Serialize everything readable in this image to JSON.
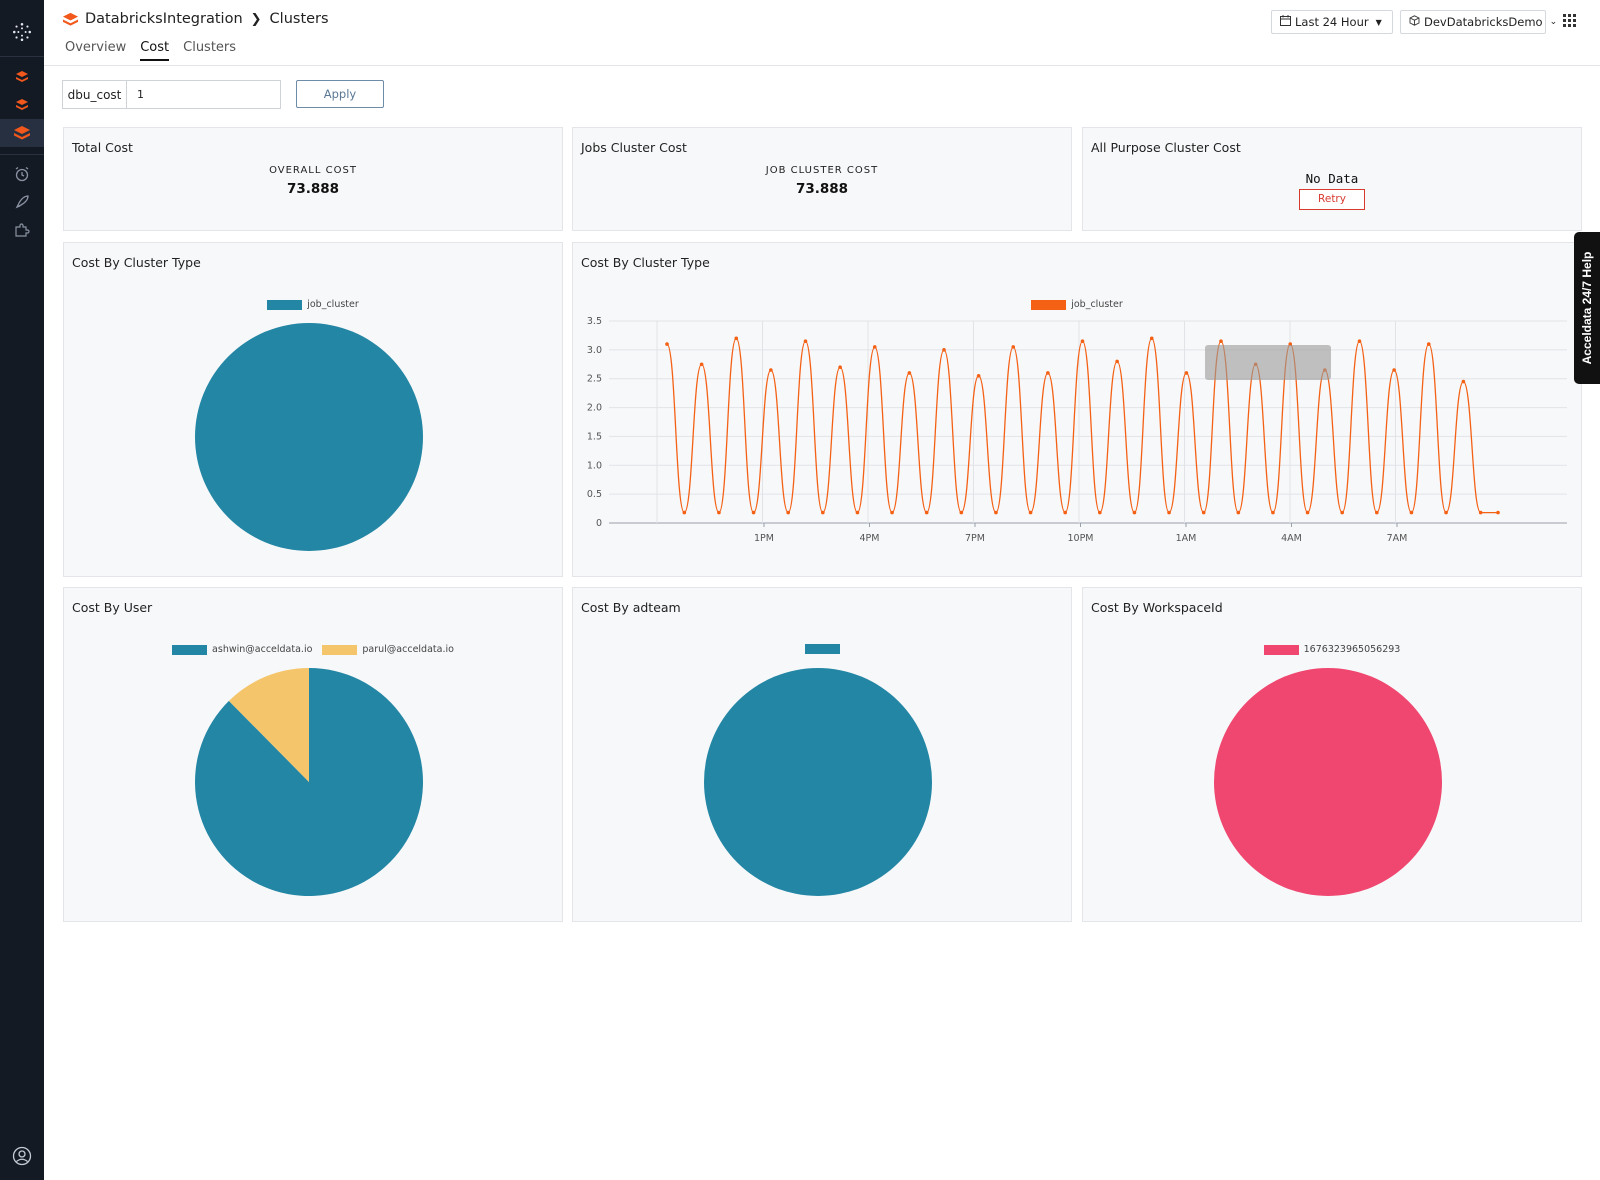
{
  "app": {
    "integration": "DatabricksIntegration",
    "page": "Clusters"
  },
  "tabs": [
    {
      "label": "Overview",
      "active": false
    },
    {
      "label": "Cost",
      "active": true
    },
    {
      "label": "Clusters",
      "active": false
    }
  ],
  "header": {
    "time_range": "Last 24 Hour",
    "workspace": "DevDatabricksDemo"
  },
  "filter": {
    "label": "dbu_cost",
    "value": "1",
    "apply_label": "Apply"
  },
  "help_tab": "Acceldata 24/7 Help",
  "colors": {
    "sidebar_bg": "#141a24",
    "brand_orange": "#f2581c",
    "teal": "#2386a4",
    "yellow": "#f5c56b",
    "pink": "#ef476f",
    "line_orange": "#f46115",
    "retry_red": "#d83a2e"
  },
  "panels": {
    "total_cost": {
      "title": "Total Cost",
      "label": "OVERALL COST",
      "value": "73.888"
    },
    "jobs_cost": {
      "title": "Jobs Cluster Cost",
      "label": "JOB CLUSTER COST",
      "value": "73.888"
    },
    "all_purpose": {
      "title": "All Purpose Cluster Cost",
      "message": "No Data",
      "retry_label": "Retry"
    },
    "pie_cluster_type": {
      "title": "Cost By Cluster Type"
    },
    "line_cluster_type": {
      "title": "Cost By Cluster Type"
    },
    "pie_user": {
      "title": "Cost By User"
    },
    "pie_adteam": {
      "title": "Cost By adteam"
    },
    "pie_workspace": {
      "title": "Cost By WorkspaceId"
    }
  },
  "chart_data": [
    {
      "type": "pie",
      "title": "Cost By Cluster Type",
      "legend_position": "top",
      "categories": [
        "job_cluster"
      ],
      "values": [
        100
      ],
      "colors": [
        "#2386a4"
      ]
    },
    {
      "type": "line",
      "title": "Cost By Cluster Type",
      "legend_position": "top",
      "series": [
        {
          "name": "job_cluster",
          "color": "#f46115"
        }
      ],
      "x_ticks": [
        "1PM",
        "4PM",
        "7PM",
        "10PM",
        "1AM",
        "4AM",
        "7AM"
      ],
      "y_ticks": [
        "0",
        "0.5",
        "1.0",
        "1.5",
        "2.0",
        "2.5",
        "3.0",
        "3.5"
      ],
      "ylim": [
        0,
        3.5
      ],
      "grid": true,
      "peaks": [
        3.1,
        2.75,
        3.2,
        2.65,
        3.15,
        2.7,
        3.05,
        2.6,
        3.0,
        2.55,
        3.05,
        2.6,
        3.15,
        2.8,
        3.2,
        2.6,
        3.15,
        2.75,
        3.1,
        2.65,
        3.15,
        2.65,
        3.1,
        2.45
      ],
      "trough": 0.18,
      "tooltip_faded": true
    },
    {
      "type": "pie",
      "title": "Cost By User",
      "legend_position": "top",
      "categories": [
        "ashwin@acceldata.io",
        "parul@acceldata.io"
      ],
      "values": [
        87.6,
        12.4
      ],
      "colors": [
        "#2386a4",
        "#f5c56b"
      ]
    },
    {
      "type": "pie",
      "title": "Cost By adteam",
      "legend_position": "top",
      "categories": [
        ""
      ],
      "values": [
        100
      ],
      "colors": [
        "#2386a4"
      ]
    },
    {
      "type": "pie",
      "title": "Cost By WorkspaceId",
      "legend_position": "top",
      "categories": [
        "1676323965056293"
      ],
      "values": [
        100
      ],
      "colors": [
        "#ef476f"
      ]
    }
  ]
}
